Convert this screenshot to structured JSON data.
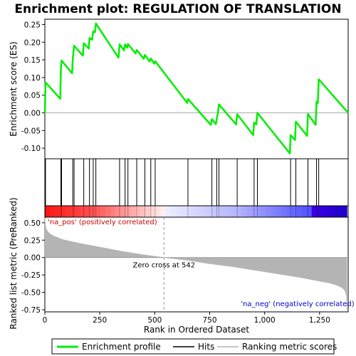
{
  "chart_data": {
    "type": "line",
    "title": "Enrichment plot: REGULATION OF TRANSLATION",
    "xlabel": "Rank in Ordered Dataset",
    "ylabel_top": "Enrichment score (ES)",
    "ylabel_bottom": "Ranked list metric (PreRanked)",
    "x_range": [
      0,
      1380
    ],
    "x_ticks": [
      0,
      250,
      500,
      750,
      1000,
      1250
    ],
    "x_tick_labels": [
      "0",
      "250",
      "500",
      "750",
      "1,000",
      "1,250"
    ],
    "es_ylim": [
      -0.13,
      0.265
    ],
    "es_ticks": [
      -0.1,
      -0.05,
      0.0,
      0.05,
      0.1,
      0.15,
      0.2,
      0.25
    ],
    "es_tick_labels": [
      "-0.10",
      "-0.05",
      "0.00",
      "0.05",
      "0.10",
      "0.15",
      "0.20",
      "0.25"
    ],
    "metric_ylim": [
      -0.78,
      0.58
    ],
    "metric_ticks": [
      -0.75,
      -0.5,
      -0.25,
      0.0,
      0.25,
      0.5
    ],
    "metric_tick_labels": [
      "-0.75",
      "-0.50",
      "-0.25",
      "0.00",
      "0.25",
      "0.50"
    ],
    "n_genes": 1374,
    "zero_cross": 542,
    "series": [
      {
        "name": "Enrichment profile",
        "color": "#00ee00",
        "x": [
          0,
          3,
          5,
          70,
          73,
          76,
          124,
          127,
          133,
          173,
          177,
          200,
          203,
          215,
          220,
          228,
          232,
          335,
          340,
          360,
          365,
          374,
          378,
          413,
          418,
          450,
          455,
          477,
          482,
          498,
          502,
          648,
          651,
          755,
          760,
          778,
          782,
          788,
          792,
          870,
          875,
          948,
          952,
          962,
          967,
          1115,
          1118,
          1138,
          1142,
          1193,
          1197,
          1232,
          1236,
          1242,
          1246,
          1380
        ],
        "y": [
          0.0,
          0.085,
          0.085,
          0.04,
          0.125,
          0.148,
          0.112,
          0.152,
          0.19,
          0.162,
          0.197,
          0.182,
          0.212,
          0.207,
          0.231,
          0.228,
          0.253,
          0.156,
          0.194,
          0.177,
          0.194,
          0.184,
          0.195,
          0.168,
          0.178,
          0.153,
          0.164,
          0.145,
          0.154,
          0.139,
          0.146,
          0.028,
          0.039,
          -0.034,
          -0.018,
          -0.032,
          -0.018,
          0.003,
          0.024,
          -0.033,
          -0.004,
          -0.063,
          -0.027,
          -0.033,
          0.0,
          -0.115,
          -0.063,
          -0.077,
          -0.025,
          -0.065,
          -0.003,
          -0.034,
          0.032,
          0.028,
          0.095,
          0.0
        ]
      },
      {
        "name": "Hits",
        "color": "#000000",
        "x": [
          3,
          73,
          76,
          127,
          133,
          177,
          203,
          220,
          232,
          340,
          365,
          378,
          418,
          455,
          482,
          502,
          651,
          760,
          782,
          792,
          875,
          952,
          967,
          1118,
          1142,
          1197,
          1236,
          1246
        ]
      },
      {
        "name": "Ranking metric scores",
        "color": "#b4b4b4",
        "metric_profile_x": [
          0,
          2,
          5,
          10,
          20,
          40,
          80,
          150,
          250,
          350,
          450,
          542,
          650,
          750,
          850,
          950,
          1050,
          1150,
          1200,
          1250,
          1300,
          1330,
          1350,
          1362,
          1368,
          1372,
          1374
        ],
        "metric_profile_y": [
          0.57,
          0.48,
          0.43,
          0.39,
          0.35,
          0.31,
          0.26,
          0.21,
          0.15,
          0.09,
          0.04,
          0.0,
          -0.04,
          -0.09,
          -0.13,
          -0.18,
          -0.23,
          -0.28,
          -0.31,
          -0.34,
          -0.37,
          -0.4,
          -0.43,
          -0.46,
          -0.5,
          -0.56,
          -0.74
        ]
      }
    ],
    "annotations": {
      "zero_cross_label": "Zero cross at 542",
      "pos_label": "'na_pos' (positively correlated)",
      "neg_label": "'na_neg' (negatively correlated)"
    },
    "bar_colors": [
      "#ff0000",
      "#ff8888",
      "#ffdddd",
      "#dcdcff",
      "#7777ff",
      "#0000e6",
      "#2200aa"
    ],
    "pos_label_color": "#cc0000",
    "neg_label_color": "#0000cc",
    "legend_placement": "bottom",
    "legend": [
      "Enrichment profile",
      "Hits",
      "Ranking metric scores"
    ]
  }
}
